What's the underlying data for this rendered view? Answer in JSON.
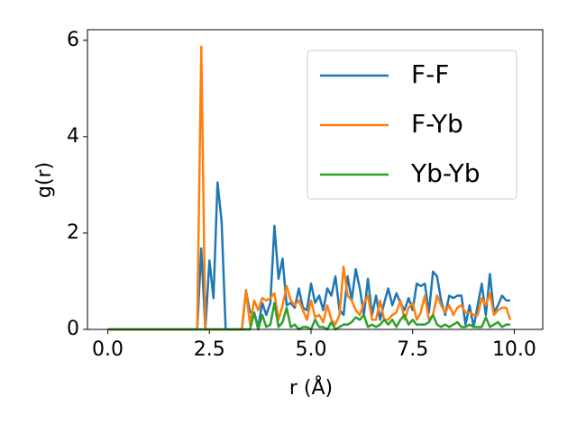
{
  "chart_data": {
    "type": "line",
    "xlabel": "r (Å)",
    "ylabel": "g(r)",
    "x": [
      0,
      0.1,
      0.2,
      0.3,
      0.4,
      0.5,
      0.6,
      0.7,
      0.8,
      0.9,
      1,
      1.1,
      1.2,
      1.3,
      1.4,
      1.5,
      1.6,
      1.7,
      1.8,
      1.9,
      2,
      2.1,
      2.2,
      2.3,
      2.4,
      2.5,
      2.6,
      2.7,
      2.8,
      2.9,
      3,
      3.1,
      3.2,
      3.3,
      3.4,
      3.5,
      3.6,
      3.7,
      3.8,
      3.9,
      4,
      4.1,
      4.2,
      4.3,
      4.4,
      4.5,
      4.6,
      4.7,
      4.8,
      4.9,
      5,
      5.1,
      5.2,
      5.3,
      5.4,
      5.5,
      5.6,
      5.7,
      5.8,
      5.9,
      6,
      6.1,
      6.2,
      6.3,
      6.4,
      6.5,
      6.6,
      6.7,
      6.8,
      6.9,
      7,
      7.1,
      7.2,
      7.3,
      7.4,
      7.5,
      7.6,
      7.7,
      7.8,
      7.9,
      8,
      8.1,
      8.2,
      8.3,
      8.4,
      8.5,
      8.6,
      8.7,
      8.8,
      8.9,
      9,
      9.1,
      9.2,
      9.3,
      9.4,
      9.5,
      9.6,
      9.7,
      9.8,
      9.9
    ],
    "series": [
      {
        "name": "F-F",
        "color": "#1f77b4",
        "values": [
          0,
          0,
          0,
          0,
          0,
          0,
          0,
          0,
          0,
          0,
          0,
          0,
          0,
          0,
          0,
          0,
          0,
          0,
          0,
          0,
          0,
          0,
          0,
          1.68,
          0,
          1.43,
          0.65,
          3.05,
          2.25,
          0,
          0,
          0,
          0,
          0,
          0.8,
          0.35,
          0.35,
          0.05,
          0.55,
          0.3,
          0.55,
          2.15,
          1.05,
          1.47,
          0.5,
          0.55,
          0.45,
          0.85,
          0.45,
          0.4,
          0.95,
          0.55,
          0.7,
          0.4,
          0.85,
          0.7,
          1.1,
          0.4,
          0.3,
          1.1,
          0.6,
          1.25,
          0.85,
          0.3,
          1.05,
          0.3,
          0.7,
          0.2,
          0.55,
          0.85,
          0.5,
          0.75,
          0.55,
          0.4,
          0.65,
          0.4,
          0.95,
          0.9,
          0.95,
          0.35,
          1.2,
          1.1,
          0.6,
          0.3,
          0.7,
          0.65,
          0.7,
          0.7,
          0.1,
          0.5,
          0.05,
          0.5,
          0.95,
          0.3,
          1.15,
          0.35,
          0.5,
          0.7,
          0.6,
          0.6
        ]
      },
      {
        "name": "F-Yb",
        "color": "#ff7f0e",
        "values": [
          0,
          0,
          0,
          0,
          0,
          0,
          0,
          0,
          0,
          0,
          0,
          0,
          0,
          0,
          0,
          0,
          0,
          0,
          0,
          0,
          0,
          0,
          0,
          5.87,
          0,
          0,
          0,
          0,
          0,
          0,
          0,
          0,
          0,
          0,
          0.82,
          0.1,
          0.6,
          0.4,
          0.65,
          0.6,
          0.65,
          0.75,
          0.2,
          0.5,
          0.9,
          0.6,
          0.5,
          0.6,
          0.4,
          0.2,
          0.6,
          0.25,
          0.3,
          0.15,
          0.5,
          0.2,
          0.1,
          0.3,
          1.3,
          0.7,
          0.6,
          0.4,
          0.3,
          0.55,
          0.7,
          0.2,
          0.2,
          0.6,
          0.2,
          0.2,
          0.3,
          0.35,
          0.6,
          0.2,
          0.45,
          0.55,
          0.2,
          0.35,
          0.7,
          0.2,
          0.3,
          0.7,
          0.5,
          0.35,
          0.5,
          0.3,
          0.45,
          0.5,
          0.35,
          0.35,
          0.3,
          0.3,
          0.65,
          0.5,
          0.75,
          0.3,
          0.4,
          0.45,
          0.45,
          0.2
        ]
      },
      {
        "name": "Yb-Yb",
        "color": "#2ca02c",
        "values": [
          0,
          0,
          0,
          0,
          0,
          0,
          0,
          0,
          0,
          0,
          0,
          0,
          0,
          0,
          0,
          0,
          0,
          0,
          0,
          0,
          0,
          0,
          0,
          0,
          0,
          0,
          0,
          0,
          0,
          0,
          0,
          0,
          0,
          0,
          0,
          0,
          0.35,
          0,
          0.3,
          0.05,
          0.1,
          0.55,
          0.05,
          0.15,
          0.45,
          0.05,
          0.1,
          0,
          0.05,
          0.05,
          0,
          0.2,
          0.05,
          0.05,
          0,
          0.15,
          0,
          0.05,
          0.1,
          0.1,
          0.15,
          0.25,
          0.2,
          0.3,
          0.05,
          0.1,
          0.05,
          0.1,
          0.2,
          0.1,
          0.2,
          0.05,
          0.2,
          0.3,
          0.1,
          0.2,
          0.1,
          0.1,
          0.1,
          0.15,
          0.3,
          0.1,
          0.05,
          0.1,
          0.05,
          0.1,
          0.15,
          0.05,
          0.05,
          0.1,
          0.05,
          0.05,
          0.05,
          0.25,
          0.05,
          0.1,
          0.15,
          0.05,
          0.1,
          0.1
        ]
      }
    ],
    "xlim": [
      -0.5,
      10.7
    ],
    "ylim": [
      0,
      6.22
    ],
    "xticks": [
      {
        "value": 0,
        "label": "0.0"
      },
      2.5,
      {
        "value": 5,
        "label": "5.0"
      },
      7.5,
      {
        "value": 10,
        "label": "10.0"
      }
    ],
    "yticks": [
      0,
      2,
      4,
      6
    ],
    "legend": "upper right"
  }
}
